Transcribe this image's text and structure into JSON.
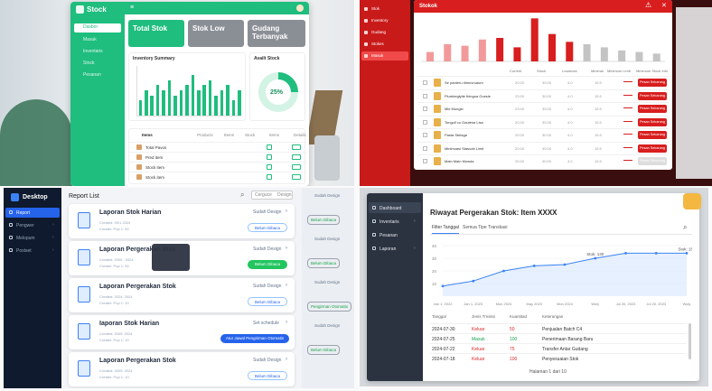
{
  "q1": {
    "logo": "Stock",
    "menu": [
      "Dasbor",
      "Masuk",
      "Inventaris",
      "Stock",
      "Pesanan"
    ],
    "cards": [
      "Total Stok",
      "Stok Low",
      "Gudang Terbanyak"
    ],
    "inventory_title": "Inventory Summary",
    "available_title": "Availt Stock",
    "available_pct": "25%",
    "available_fraction": 0.25,
    "bars": [
      3,
      5,
      4,
      6,
      5,
      7,
      4,
      5,
      6,
      8,
      5,
      6,
      7,
      4,
      5,
      6,
      3,
      5
    ],
    "table_headers": [
      "Items",
      "Products",
      "Items",
      "Stock",
      "Items",
      "Details"
    ],
    "rows": [
      "Total Pavos",
      "Pred item",
      "Stock item",
      "Stock item"
    ],
    "colors": {
      "green": "#1fbd7e",
      "grey": "#8a8f96"
    }
  },
  "q2": {
    "menu": [
      "Stok",
      "Inventory",
      "Gudang",
      "Stokes",
      "Masuk"
    ],
    "title": "Stokok",
    "bars": [
      12,
      22,
      20,
      28,
      30,
      18,
      55,
      35,
      25,
      22,
      18,
      14,
      12,
      10
    ],
    "headers": [
      "Current",
      "Stock",
      "Lowstock",
      "Minimal",
      "Minimum Limit",
      "Minimum Stock Info"
    ],
    "rows": [
      {
        "name": "Se panteru dimuvruaum",
        "v": [
          "20.00",
          "30.00",
          "4.0",
          "15.5"
        ],
        "btn": "Pesan Sekarang"
      },
      {
        "name": "Plumbegiyite thingoa Goesle",
        "v": [
          "23.00",
          "30.00",
          "4.0",
          "15.5"
        ],
        "btn": "Pesan Sekarang"
      },
      {
        "name": "Mie Mungki",
        "v": [
          "23.00",
          "30.00",
          "4.0",
          "15.5"
        ],
        "btn": "Pesan Sekarang"
      },
      {
        "name": "Tongoll cu Gautesa Lisa",
        "v": [
          "20.00",
          "30.00",
          "4.0",
          "15.5"
        ],
        "btn": "Pesan Sekarang"
      },
      {
        "name": "Pasta Stelaga",
        "v": [
          "20.00",
          "30.00",
          "4.0",
          "15.5"
        ],
        "btn": "Pesan Sekarang"
      },
      {
        "name": "Minimuasi Stasuah Limit",
        "v": [
          "20.00",
          "30.00",
          "4.0",
          "15.5"
        ],
        "btn": "Pesan Sekarang"
      },
      {
        "name": "Main Main Mowda",
        "v": [
          "20.00",
          "30.00",
          "4.0",
          "15.5"
        ],
        "btn": "Pesan Sekarang"
      }
    ],
    "colors": {
      "red": "#d81e1e"
    }
  },
  "q3": {
    "app": "Desktop",
    "menu": [
      "Report",
      "Pengwer",
      "Melopum",
      "Postset"
    ],
    "title": "Report List",
    "search": "Cerguce",
    "search2": "Design",
    "reports": [
      {
        "title": "Laporan Stok Harian",
        "sub1": "Created: 09/1 2024",
        "sub2": "Creater: Pop 1: 50",
        "status": "Sudah Design",
        "btn": "Belum Dibaca",
        "btn_style": "outline"
      },
      {
        "title": "Laporan Pergerakan Stok",
        "sub1": "Created: 2009 : 2024",
        "sub2": "Creater: Pop 1: 50",
        "status": "Sudah Design",
        "btn": "Belum Dibaca",
        "btn_style": "green"
      },
      {
        "title": "Laporan Pergerakan Stok",
        "sub1": "Created: 2024: 2024",
        "sub2": "Creater: Pop 1: 10",
        "status": "Sudah Design",
        "btn": "Belum Dibaca",
        "btn_style": "outline"
      },
      {
        "title": "Iaporan Stok Harian",
        "sub1": "Created: 2009: 2024",
        "sub2": "Creater: Pop 1: 10",
        "status": "Set schedule",
        "btn": "Atur Jawal Pengiriman Otomatis",
        "btn_style": "blue"
      },
      {
        "title": "Laporan Pergerakan Stok",
        "sub1": "Created: 2009: 2024",
        "sub2": "Creater: Pop 1: 10",
        "status": "Sudah Design",
        "btn": "Belum Dibaca",
        "btn_style": "outline"
      }
    ],
    "ghost_right": [
      "Sudah Design",
      "Belum Dibaca",
      "Sudah Design",
      "Belum Dibaca",
      "Sudah Design",
      "Pengirman Otomatis",
      "Sudah Design",
      "Belum Dibaca"
    ]
  },
  "q4": {
    "menu": [
      "Dashboard",
      "Inventaris",
      "Pesanan",
      "Laporan"
    ],
    "title": "Riwayat Pergerakan Stok: Item XXXX",
    "filters": [
      "Filter Tanggal",
      "Semua Tipe Transkasi"
    ],
    "y_ticks": [
      "40",
      "30",
      "20",
      "10"
    ],
    "x_ticks": [
      "Jan 1, 2022",
      "Jan 1, 2023",
      "Mon 2024",
      "May 2023",
      "Mon 2024",
      "Woly",
      "Jul 20, 2023",
      "Jul 20, 2023",
      "Woly"
    ],
    "chart_data": {
      "type": "area",
      "x": [
        "Jan 1, 2022",
        "Jan 1, 2023",
        "Mon 2024",
        "May 2023",
        "Mon 2024",
        "Woly",
        "Jul 20, 2023",
        "Jul 20, 2023",
        "Woly"
      ],
      "values": [
        8,
        12,
        20,
        24,
        25,
        30,
        34,
        34,
        34
      ],
      "ylim": [
        0,
        40
      ],
      "annotations": [
        "Stok: 130",
        "Stok: 150"
      ]
    },
    "table_headers": [
      "Tanggal",
      "Jenis Trnsksi",
      "Kuantitad",
      "Keterangan"
    ],
    "rows": [
      {
        "date": "2024-07-30",
        "type": "Keluar",
        "qty": "50",
        "note": "Penjualan Batch C4",
        "kind": "out"
      },
      {
        "date": "2024-07-25",
        "type": "Masuk",
        "qty": "100",
        "note": "Penerimaan Barang Baru",
        "kind": "in"
      },
      {
        "date": "2024-07-22",
        "type": "Keluar",
        "qty": "75",
        "note": "Transfer Antar Gudang",
        "kind": "out"
      },
      {
        "date": "2024-07-18",
        "type": "Keluar",
        "qty": "100",
        "note": "Penyesuaian Stok",
        "kind": "out"
      }
    ],
    "footer": "Halaman 1 dari 10"
  }
}
